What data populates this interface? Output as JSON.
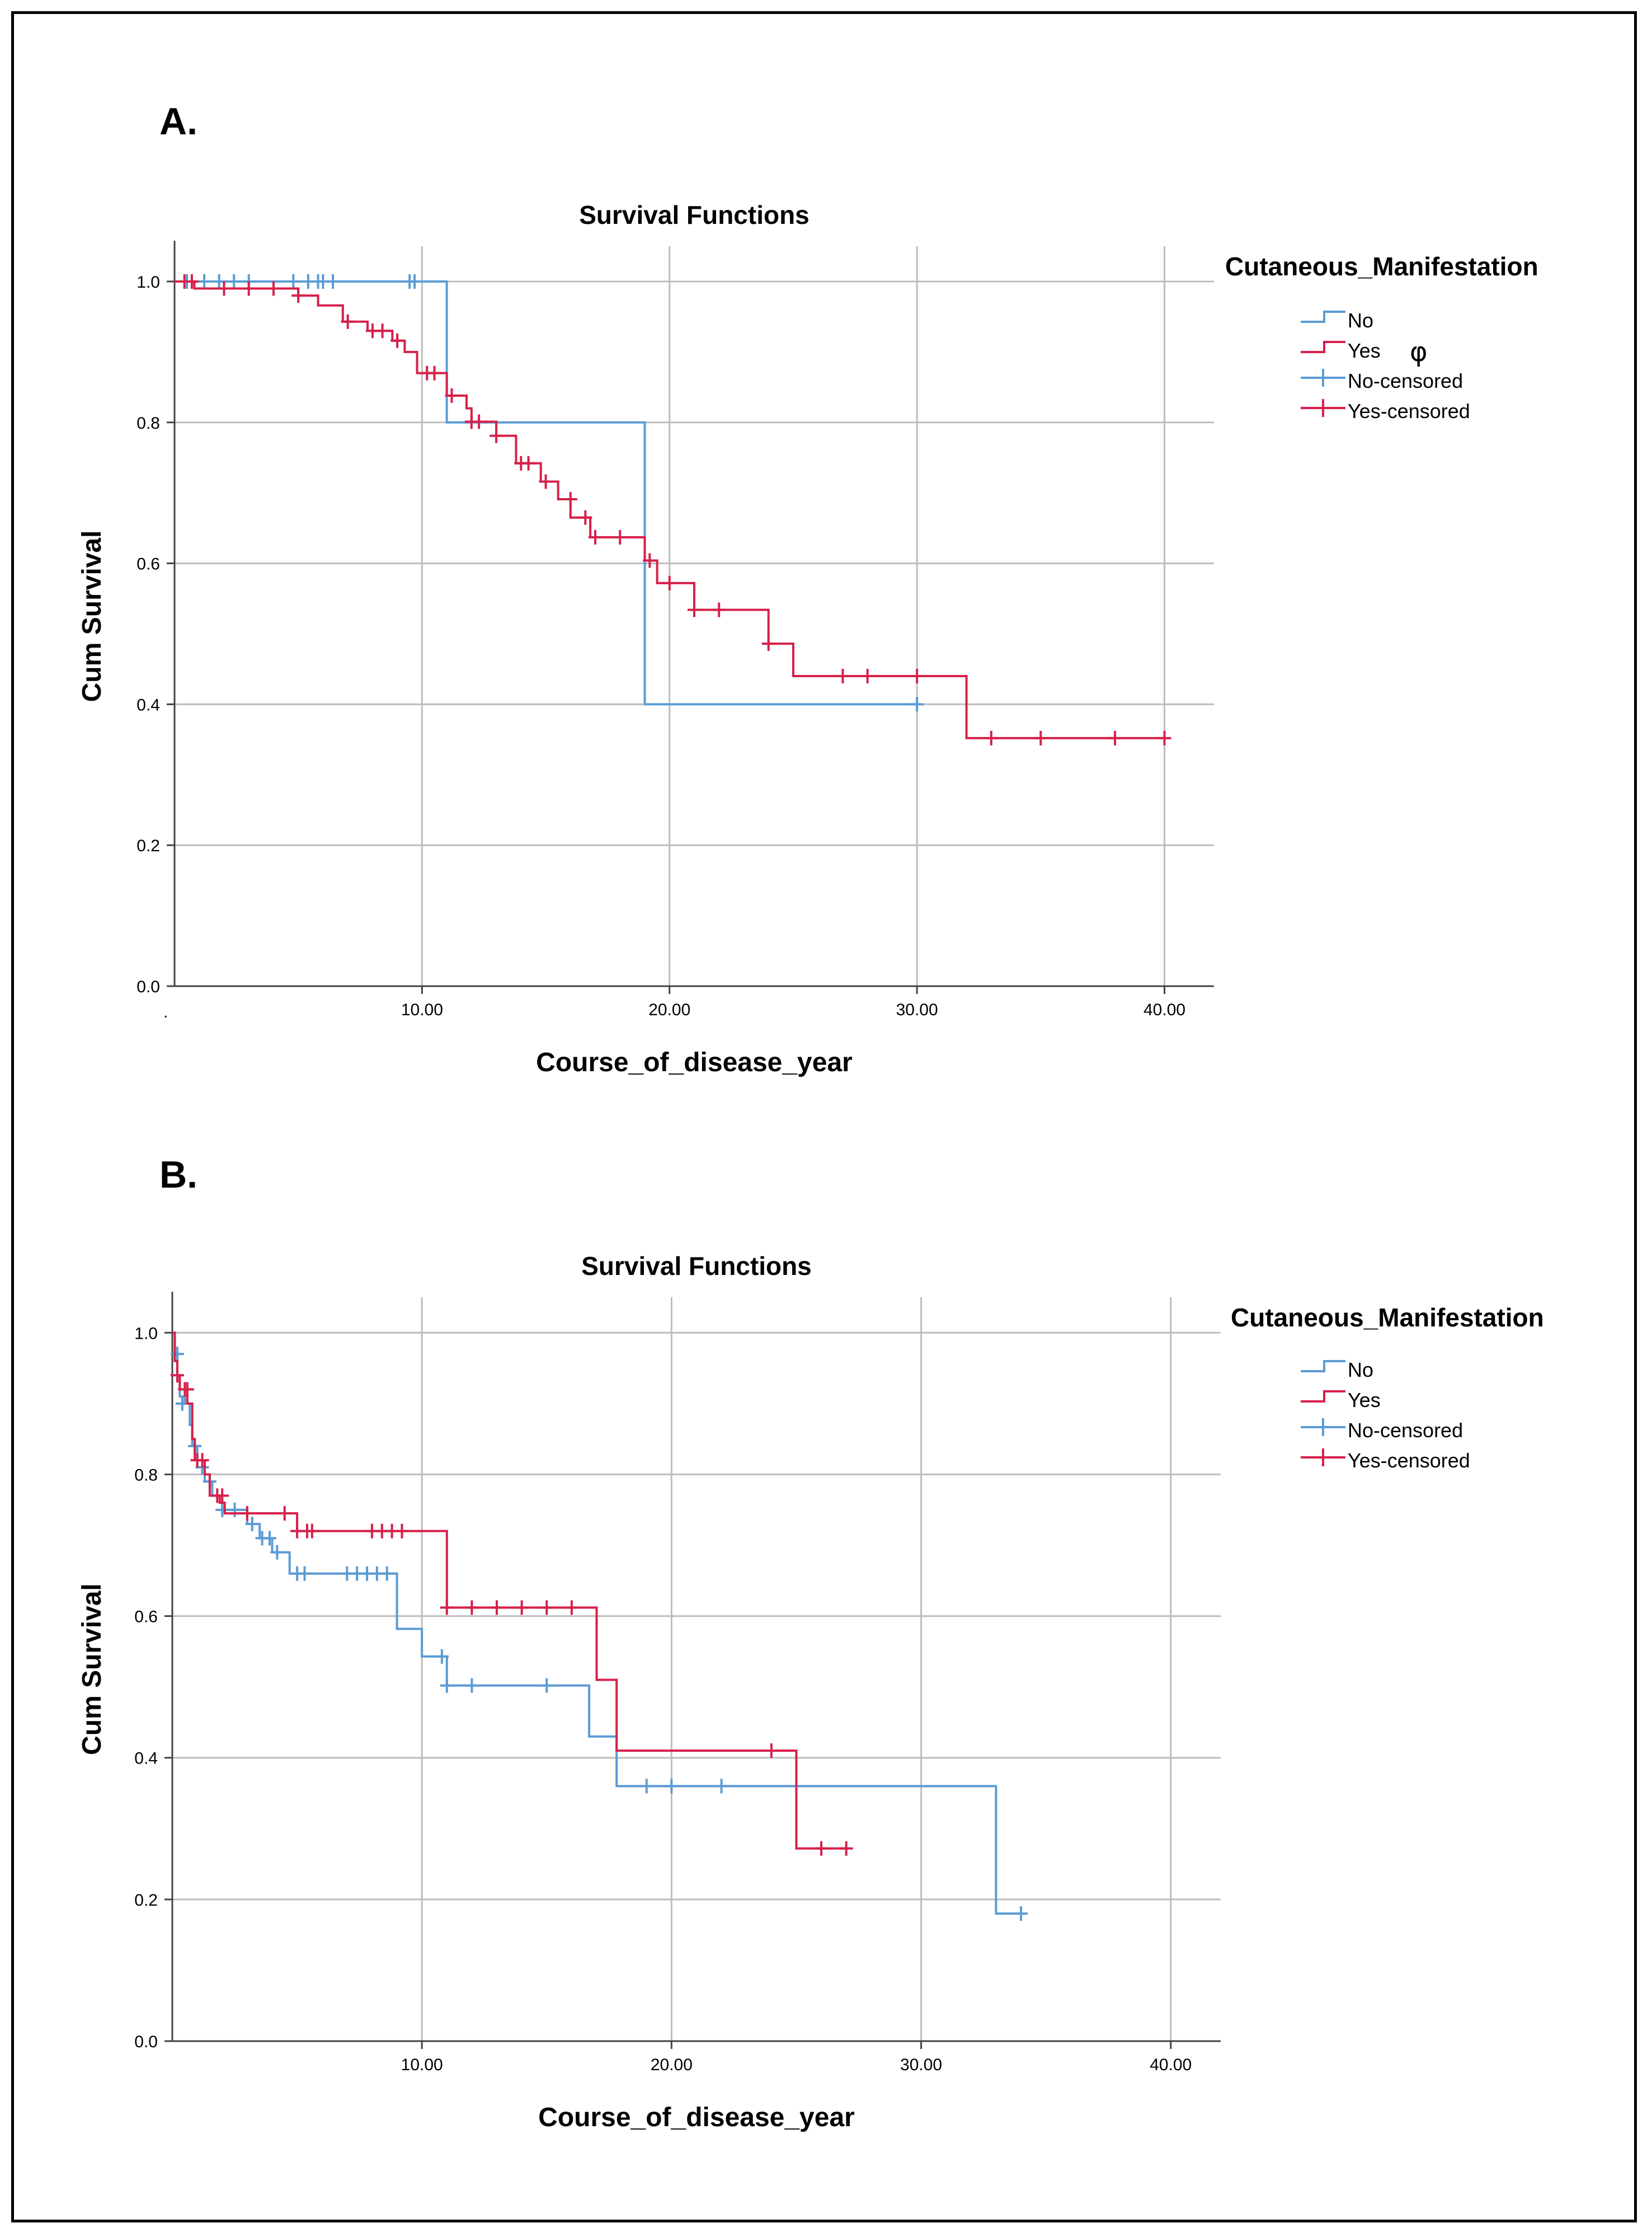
{
  "colors": {
    "no": "#5b9bd5",
    "yes": "#d6204a",
    "grid": "#bdbdbd",
    "axis": "#444444",
    "text": "#000000"
  },
  "chart_data": [
    {
      "type": "line",
      "panel_label": "A.",
      "title": "Survival Functions",
      "xlabel": "Course_of_disease_year",
      "ylabel": "Cum Survival",
      "xlim": [
        0,
        42
      ],
      "ylim": [
        0,
        1.05
      ],
      "x_ticks": [
        10,
        20,
        30,
        40
      ],
      "x_tick_labels": [
        "10.00",
        "20.00",
        "30.00",
        "40.00"
      ],
      "y_ticks": [
        0,
        0.2,
        0.4,
        0.6,
        0.8,
        1.0
      ],
      "y_tick_labels": [
        "0.0",
        "0.2",
        "0.4",
        "0.6",
        "0.8",
        "1.0"
      ],
      "x_origin_label": ".",
      "grid": true,
      "legend": {
        "title": "Cutaneous_Manifestation",
        "position": "right",
        "entries": [
          {
            "label": "No",
            "kind": "line",
            "series": "no"
          },
          {
            "label": "Yes",
            "kind": "line",
            "series": "yes"
          },
          {
            "label": "No-censored",
            "kind": "censor",
            "series": "no"
          },
          {
            "label": "Yes-censored",
            "kind": "censor",
            "series": "yes"
          }
        ]
      },
      "annotation": "φ",
      "series": [
        {
          "name": "No",
          "key": "no",
          "steps": [
            [
              0,
              1.0
            ],
            [
              11,
              0.8
            ],
            [
              19,
              0.4
            ],
            [
              30,
              0.4
            ]
          ],
          "censored": [
            [
              0.5,
              1.0
            ],
            [
              1.2,
              1.0
            ],
            [
              1.8,
              1.0
            ],
            [
              2.4,
              1.0
            ],
            [
              3.0,
              1.0
            ],
            [
              4.8,
              1.0
            ],
            [
              5.4,
              1.0
            ],
            [
              5.8,
              1.0
            ],
            [
              6.0,
              1.0
            ],
            [
              6.4,
              1.0
            ],
            [
              9.5,
              1.0
            ],
            [
              9.7,
              1.0
            ],
            [
              30,
              0.4
            ]
          ]
        },
        {
          "name": "Yes",
          "key": "yes",
          "steps": [
            [
              0,
              1.0
            ],
            [
              0.8,
              0.99
            ],
            [
              5,
              0.98
            ],
            [
              5.8,
              0.966
            ],
            [
              6.8,
              0.943
            ],
            [
              7.8,
              0.93
            ],
            [
              8.8,
              0.916
            ],
            [
              9.3,
              0.9
            ],
            [
              9.8,
              0.87
            ],
            [
              11,
              0.838
            ],
            [
              11.8,
              0.82
            ],
            [
              12,
              0.801
            ],
            [
              13,
              0.781
            ],
            [
              13.8,
              0.742
            ],
            [
              14.8,
              0.716
            ],
            [
              15.5,
              0.691
            ],
            [
              16,
              0.665
            ],
            [
              16.8,
              0.637
            ],
            [
              19,
              0.604
            ],
            [
              19.5,
              0.572
            ],
            [
              21,
              0.534
            ],
            [
              24,
              0.486
            ],
            [
              25,
              0.44
            ],
            [
              32,
              0.352
            ],
            [
              40,
              0.352
            ]
          ],
          "censored": [
            [
              0.4,
              1.0
            ],
            [
              0.7,
              1.0
            ],
            [
              2.0,
              0.99
            ],
            [
              3.0,
              0.99
            ],
            [
              4.0,
              0.99
            ],
            [
              5.0,
              0.98
            ],
            [
              7.0,
              0.943
            ],
            [
              8.0,
              0.93
            ],
            [
              8.4,
              0.93
            ],
            [
              9.0,
              0.916
            ],
            [
              10.2,
              0.87
            ],
            [
              10.5,
              0.87
            ],
            [
              11.2,
              0.838
            ],
            [
              12.0,
              0.801
            ],
            [
              12.3,
              0.801
            ],
            [
              13.0,
              0.781
            ],
            [
              14.0,
              0.742
            ],
            [
              14.3,
              0.742
            ],
            [
              15.0,
              0.716
            ],
            [
              16.0,
              0.691
            ],
            [
              16.6,
              0.665
            ],
            [
              17.0,
              0.637
            ],
            [
              18.0,
              0.637
            ],
            [
              19.2,
              0.604
            ],
            [
              20.0,
              0.572
            ],
            [
              21.0,
              0.534
            ],
            [
              22.0,
              0.534
            ],
            [
              24.0,
              0.486
            ],
            [
              27.0,
              0.44
            ],
            [
              28.0,
              0.44
            ],
            [
              30.0,
              0.44
            ],
            [
              33.0,
              0.352
            ],
            [
              35.0,
              0.352
            ],
            [
              38.0,
              0.352
            ],
            [
              40.0,
              0.352
            ]
          ]
        }
      ]
    },
    {
      "type": "line",
      "panel_label": "B.",
      "title": "Survival Functions",
      "xlabel": "Course_of_disease_year",
      "ylabel": "Cum Survival",
      "xlim": [
        0,
        42
      ],
      "ylim": [
        0,
        1.05
      ],
      "x_ticks": [
        10,
        20,
        30,
        40
      ],
      "x_tick_labels": [
        "10.00",
        "20.00",
        "30.00",
        "40.00"
      ],
      "y_ticks": [
        0,
        0.2,
        0.4,
        0.6,
        0.8,
        1.0
      ],
      "y_tick_labels": [
        "0.0",
        "0.2",
        "0.4",
        "0.6",
        "0.8",
        "1.0"
      ],
      "x_origin_label": "",
      "grid": true,
      "legend": {
        "title": "Cutaneous_Manifestation",
        "position": "right",
        "entries": [
          {
            "label": "No",
            "kind": "line",
            "series": "no"
          },
          {
            "label": "Yes",
            "kind": "line",
            "series": "yes"
          },
          {
            "label": "No-censored",
            "kind": "censor",
            "series": "no"
          },
          {
            "label": "Yes-censored",
            "kind": "censor",
            "series": "yes"
          }
        ]
      },
      "annotation": "",
      "series": [
        {
          "name": "No",
          "key": "no",
          "steps": [
            [
              0,
              1.0
            ],
            [
              0.1,
              0.97
            ],
            [
              0.2,
              0.94
            ],
            [
              0.3,
              0.91
            ],
            [
              0.5,
              0.9
            ],
            [
              0.7,
              0.87
            ],
            [
              0.8,
              0.84
            ],
            [
              1.0,
              0.81
            ],
            [
              1.3,
              0.79
            ],
            [
              1.6,
              0.77
            ],
            [
              2.0,
              0.75
            ],
            [
              3.0,
              0.73
            ],
            [
              3.5,
              0.71
            ],
            [
              4.0,
              0.69
            ],
            [
              4.7,
              0.66
            ],
            [
              9.0,
              0.582
            ],
            [
              10.0,
              0.543
            ],
            [
              11.0,
              0.502
            ],
            [
              16.7,
              0.43
            ],
            [
              17.8,
              0.36
            ],
            [
              33.0,
              0.18
            ],
            [
              34.0,
              0.18
            ]
          ],
          "censored": [
            [
              0.2,
              0.97
            ],
            [
              0.4,
              0.9
            ],
            [
              0.9,
              0.84
            ],
            [
              1.2,
              0.81
            ],
            [
              1.5,
              0.79
            ],
            [
              2.0,
              0.75
            ],
            [
              2.5,
              0.75
            ],
            [
              3.2,
              0.73
            ],
            [
              3.6,
              0.71
            ],
            [
              3.9,
              0.71
            ],
            [
              4.2,
              0.69
            ],
            [
              5.0,
              0.66
            ],
            [
              5.3,
              0.66
            ],
            [
              7.0,
              0.66
            ],
            [
              7.4,
              0.66
            ],
            [
              7.8,
              0.66
            ],
            [
              8.2,
              0.66
            ],
            [
              8.6,
              0.66
            ],
            [
              10.8,
              0.543
            ],
            [
              11.0,
              0.502
            ],
            [
              12.0,
              0.502
            ],
            [
              15.0,
              0.502
            ],
            [
              19.0,
              0.36
            ],
            [
              20.0,
              0.36
            ],
            [
              22.0,
              0.36
            ],
            [
              34.0,
              0.18
            ]
          ]
        },
        {
          "name": "Yes",
          "key": "yes",
          "steps": [
            [
              0,
              1.0
            ],
            [
              0.1,
              0.96
            ],
            [
              0.2,
              0.94
            ],
            [
              0.3,
              0.92
            ],
            [
              0.6,
              0.9
            ],
            [
              0.8,
              0.85
            ],
            [
              0.9,
              0.82
            ],
            [
              1.3,
              0.8
            ],
            [
              1.5,
              0.77
            ],
            [
              1.9,
              0.76
            ],
            [
              2.1,
              0.745
            ],
            [
              5.0,
              0.72
            ],
            [
              11.0,
              0.612
            ],
            [
              17.0,
              0.51
            ],
            [
              17.8,
              0.41
            ],
            [
              25.0,
              0.272
            ],
            [
              27.0,
              0.272
            ]
          ],
          "censored": [
            [
              0.2,
              0.94
            ],
            [
              0.5,
              0.92
            ],
            [
              0.6,
              0.92
            ],
            [
              1.0,
              0.82
            ],
            [
              1.2,
              0.82
            ],
            [
              1.8,
              0.77
            ],
            [
              2.0,
              0.77
            ],
            [
              3.0,
              0.745
            ],
            [
              4.5,
              0.745
            ],
            [
              5.0,
              0.72
            ],
            [
              5.4,
              0.72
            ],
            [
              5.6,
              0.72
            ],
            [
              8.0,
              0.72
            ],
            [
              8.4,
              0.72
            ],
            [
              8.8,
              0.72
            ],
            [
              9.2,
              0.72
            ],
            [
              11.0,
              0.612
            ],
            [
              12.0,
              0.612
            ],
            [
              13.0,
              0.612
            ],
            [
              14.0,
              0.612
            ],
            [
              15.0,
              0.612
            ],
            [
              16.0,
              0.612
            ],
            [
              24.0,
              0.41
            ],
            [
              26.0,
              0.272
            ],
            [
              27.0,
              0.272
            ]
          ]
        }
      ]
    }
  ]
}
